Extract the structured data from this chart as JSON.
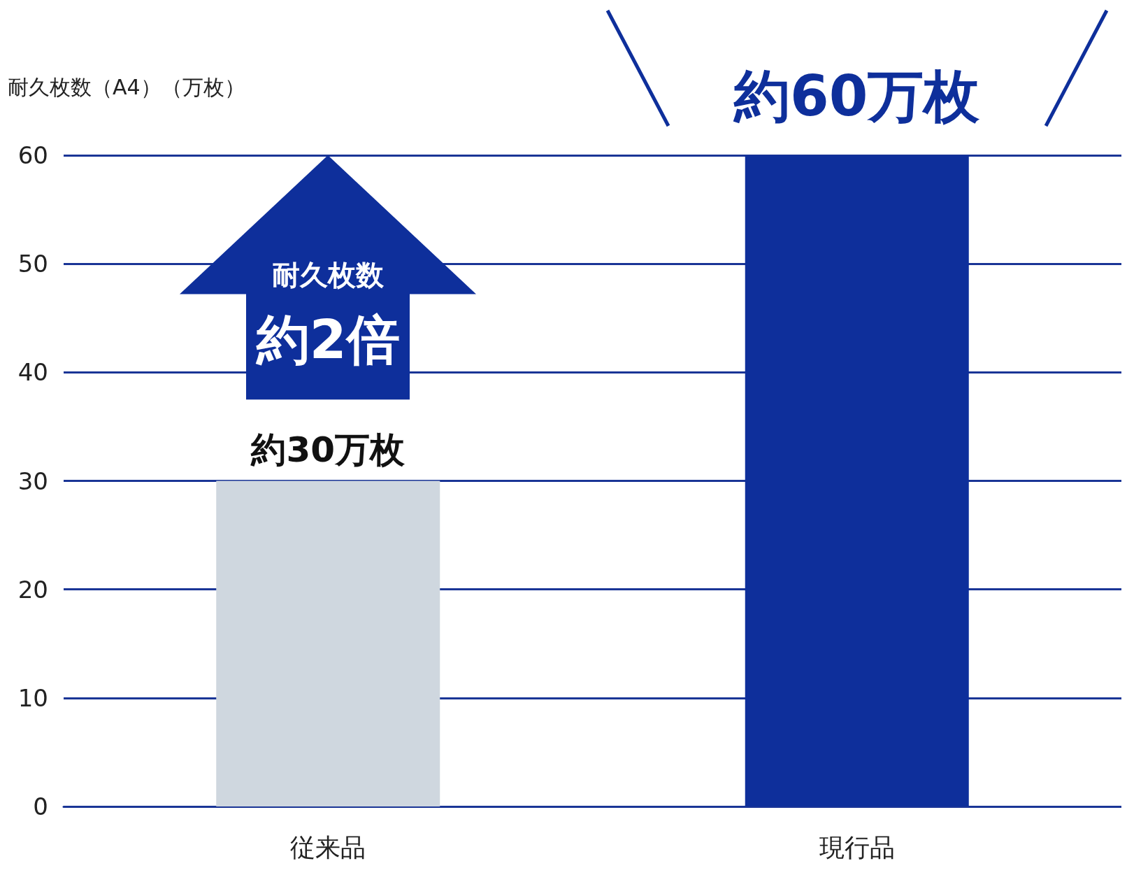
{
  "chart_data": {
    "type": "bar",
    "ylabel": "耐久枚数（A4）（万枚）",
    "categories": [
      "従来品",
      "現行品"
    ],
    "values": [
      30,
      60
    ],
    "colors": [
      "#cfd7df",
      "#0e2f9b"
    ],
    "value_labels": [
      "約30万枚",
      "約60万枚"
    ],
    "ylim": [
      0,
      60
    ],
    "yticks": [
      0,
      10,
      20,
      30,
      40,
      50,
      60
    ],
    "grid": "y",
    "annotations": [
      "耐久枚数",
      "約2倍"
    ]
  }
}
